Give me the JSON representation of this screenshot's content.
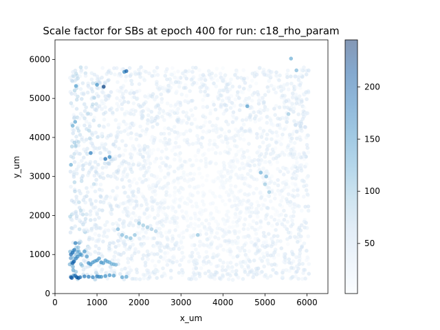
{
  "chart_data": {
    "type": "scatter",
    "title": "Scale factor for SBs at epoch 400 for run: c18_rho_param",
    "xlabel": "x_um",
    "ylabel": "y_um",
    "xlim": [
      0,
      6500
    ],
    "ylim": [
      0,
      6500
    ],
    "x_ticks": [
      "0",
      "1000",
      "2000",
      "3000",
      "4000",
      "5000",
      "6000"
    ],
    "y_ticks": [
      "0",
      "1000",
      "2000",
      "3000",
      "4000",
      "5000",
      "6000"
    ],
    "grid": false,
    "colormap": "Blues",
    "point_alpha": 0.5,
    "colorbar": {
      "range": [
        2,
        245
      ],
      "ticks": [
        "50",
        "100",
        "150",
        "200"
      ],
      "tick_values": [
        50,
        100,
        150,
        200
      ]
    },
    "highlight_points": {
      "x": [
        380,
        400,
        420,
        450,
        480,
        520,
        560,
        600,
        700,
        800,
        900,
        1000,
        1050,
        1100,
        1200,
        1300,
        1400,
        1600,
        1700,
        380,
        420,
        460,
        500,
        540,
        600,
        700,
        760,
        800,
        850,
        900,
        950,
        1000,
        1050,
        1100,
        1150,
        1200,
        1250,
        1300,
        1350,
        1400,
        1450,
        1500,
        1600,
        1700,
        1800,
        1900,
        2000,
        2100,
        2200,
        2300,
        2400,
        1160,
        1000,
        1650,
        1700,
        850,
        1200,
        1300,
        4580,
        4900,
        5030,
        5750,
        5620,
        5560,
        500,
        420,
        480,
        380,
        5000,
        5100,
        3400
      ],
      "y": [
        420,
        400,
        780,
        820,
        460,
        420,
        400,
        420,
        440,
        430,
        420,
        440,
        430,
        430,
        450,
        470,
        460,
        420,
        430,
        1000,
        1050,
        1120,
        900,
        950,
        1000,
        1080,
        950,
        780,
        750,
        800,
        830,
        850,
        900,
        800,
        780,
        850,
        820,
        800,
        760,
        750,
        740,
        1650,
        1500,
        1450,
        1420,
        1500,
        1800,
        1750,
        1700,
        1650,
        1600,
        5300,
        5350,
        5680,
        5700,
        3600,
        3450,
        3500,
        4800,
        3100,
        3000,
        5720,
        6020,
        4600,
        5320,
        4300,
        4400,
        3300,
        2800,
        2600,
        1500
      ],
      "values": [
        210,
        205,
        200,
        195,
        190,
        200,
        215,
        185,
        175,
        170,
        165,
        172,
        160,
        155,
        150,
        145,
        140,
        135,
        130,
        190,
        185,
        175,
        170,
        160,
        150,
        145,
        140,
        160,
        150,
        145,
        140,
        150,
        145,
        155,
        140,
        135,
        130,
        125,
        120,
        118,
        115,
        110,
        105,
        100,
        100,
        100,
        95,
        90,
        90,
        85,
        80,
        230,
        150,
        160,
        200,
        170,
        180,
        160,
        140,
        120,
        110,
        110,
        120,
        90,
        130,
        120,
        130,
        120,
        90,
        90,
        100
      ]
    }
  }
}
